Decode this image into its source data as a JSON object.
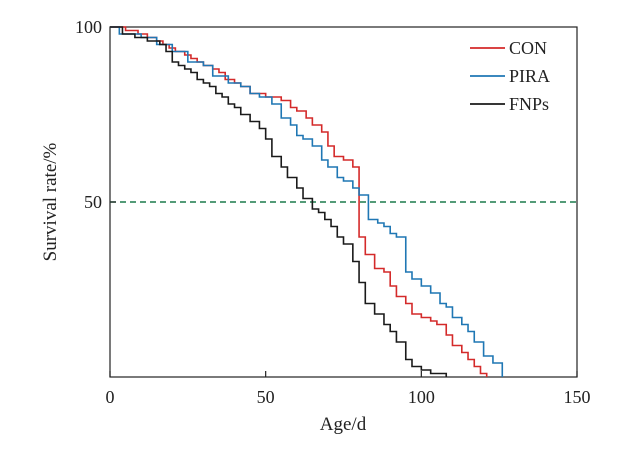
{
  "chart_data": {
    "type": "line",
    "step": true,
    "xlabel": "Age/d",
    "ylabel": "Survival rate/%",
    "xlim": [
      0,
      150
    ],
    "ylim": [
      0,
      100
    ],
    "x_ticks": [
      0,
      50,
      100,
      150
    ],
    "x_tick_labels": [
      "0",
      "50",
      "100",
      "150"
    ],
    "y_ticks": [
      50,
      100
    ],
    "y_tick_labels": [
      "50",
      "100"
    ],
    "grid": false,
    "legend_position": "top-right",
    "reference_line": {
      "y": 50,
      "color": "#1a7a4c",
      "style": "dashed"
    },
    "series": [
      {
        "name": "CON",
        "color": "#d42a2a",
        "x": [
          0,
          5,
          9,
          12,
          15,
          17,
          19,
          21,
          24,
          26,
          28,
          30,
          33,
          35,
          37,
          40,
          42,
          45,
          50,
          55,
          58,
          60,
          63,
          65,
          68,
          70,
          72,
          75,
          78,
          80,
          82,
          85,
          88,
          90,
          92,
          95,
          97,
          100,
          103,
          105,
          108,
          110,
          113,
          115,
          117,
          119,
          121
        ],
        "y": [
          100,
          99,
          98,
          97,
          96,
          95,
          94,
          93,
          92,
          91,
          90,
          89,
          88,
          87,
          85,
          84,
          83,
          81,
          80,
          79,
          77,
          76,
          74,
          72,
          70,
          66,
          63,
          62,
          60,
          40,
          35,
          31,
          30,
          26,
          23,
          21,
          18,
          17,
          16,
          15,
          12,
          9,
          7,
          5,
          3,
          1,
          0
        ]
      },
      {
        "name": "PIRA",
        "color": "#1f77b4",
        "x": [
          0,
          3,
          10,
          15,
          20,
          25,
          30,
          33,
          38,
          42,
          45,
          48,
          52,
          55,
          58,
          60,
          62,
          65,
          68,
          70,
          73,
          75,
          78,
          80,
          83,
          86,
          88,
          90,
          92,
          95,
          97,
          100,
          103,
          106,
          108,
          110,
          113,
          115,
          117,
          120,
          123,
          126
        ],
        "y": [
          100,
          98,
          97,
          95,
          93,
          90,
          89,
          86,
          84,
          83,
          81,
          80,
          78,
          74,
          72,
          69,
          68,
          66,
          62,
          60,
          57,
          56,
          54,
          52,
          45,
          44,
          43,
          41,
          40,
          30,
          28,
          26,
          24,
          21,
          20,
          17,
          15,
          13,
          10,
          6,
          4,
          0
        ]
      },
      {
        "name": "FNPs",
        "color": "#1a1a1a",
        "x": [
          0,
          4,
          8,
          12,
          16,
          18,
          20,
          22,
          24,
          26,
          28,
          30,
          32,
          34,
          36,
          38,
          40,
          42,
          45,
          48,
          50,
          52,
          55,
          57,
          60,
          62,
          65,
          67,
          69,
          71,
          73,
          75,
          78,
          80,
          82,
          85,
          88,
          90,
          92,
          95,
          97,
          100,
          103,
          108
        ],
        "y": [
          100,
          98,
          97,
          96,
          95,
          93,
          90,
          89,
          88,
          87,
          85,
          84,
          83,
          81,
          80,
          78,
          77,
          75,
          73,
          71,
          68,
          63,
          60,
          57,
          54,
          51,
          48,
          47,
          45,
          43,
          40,
          38,
          33,
          27,
          21,
          18,
          15,
          13,
          10,
          5,
          3,
          2,
          1,
          0
        ]
      }
    ]
  }
}
